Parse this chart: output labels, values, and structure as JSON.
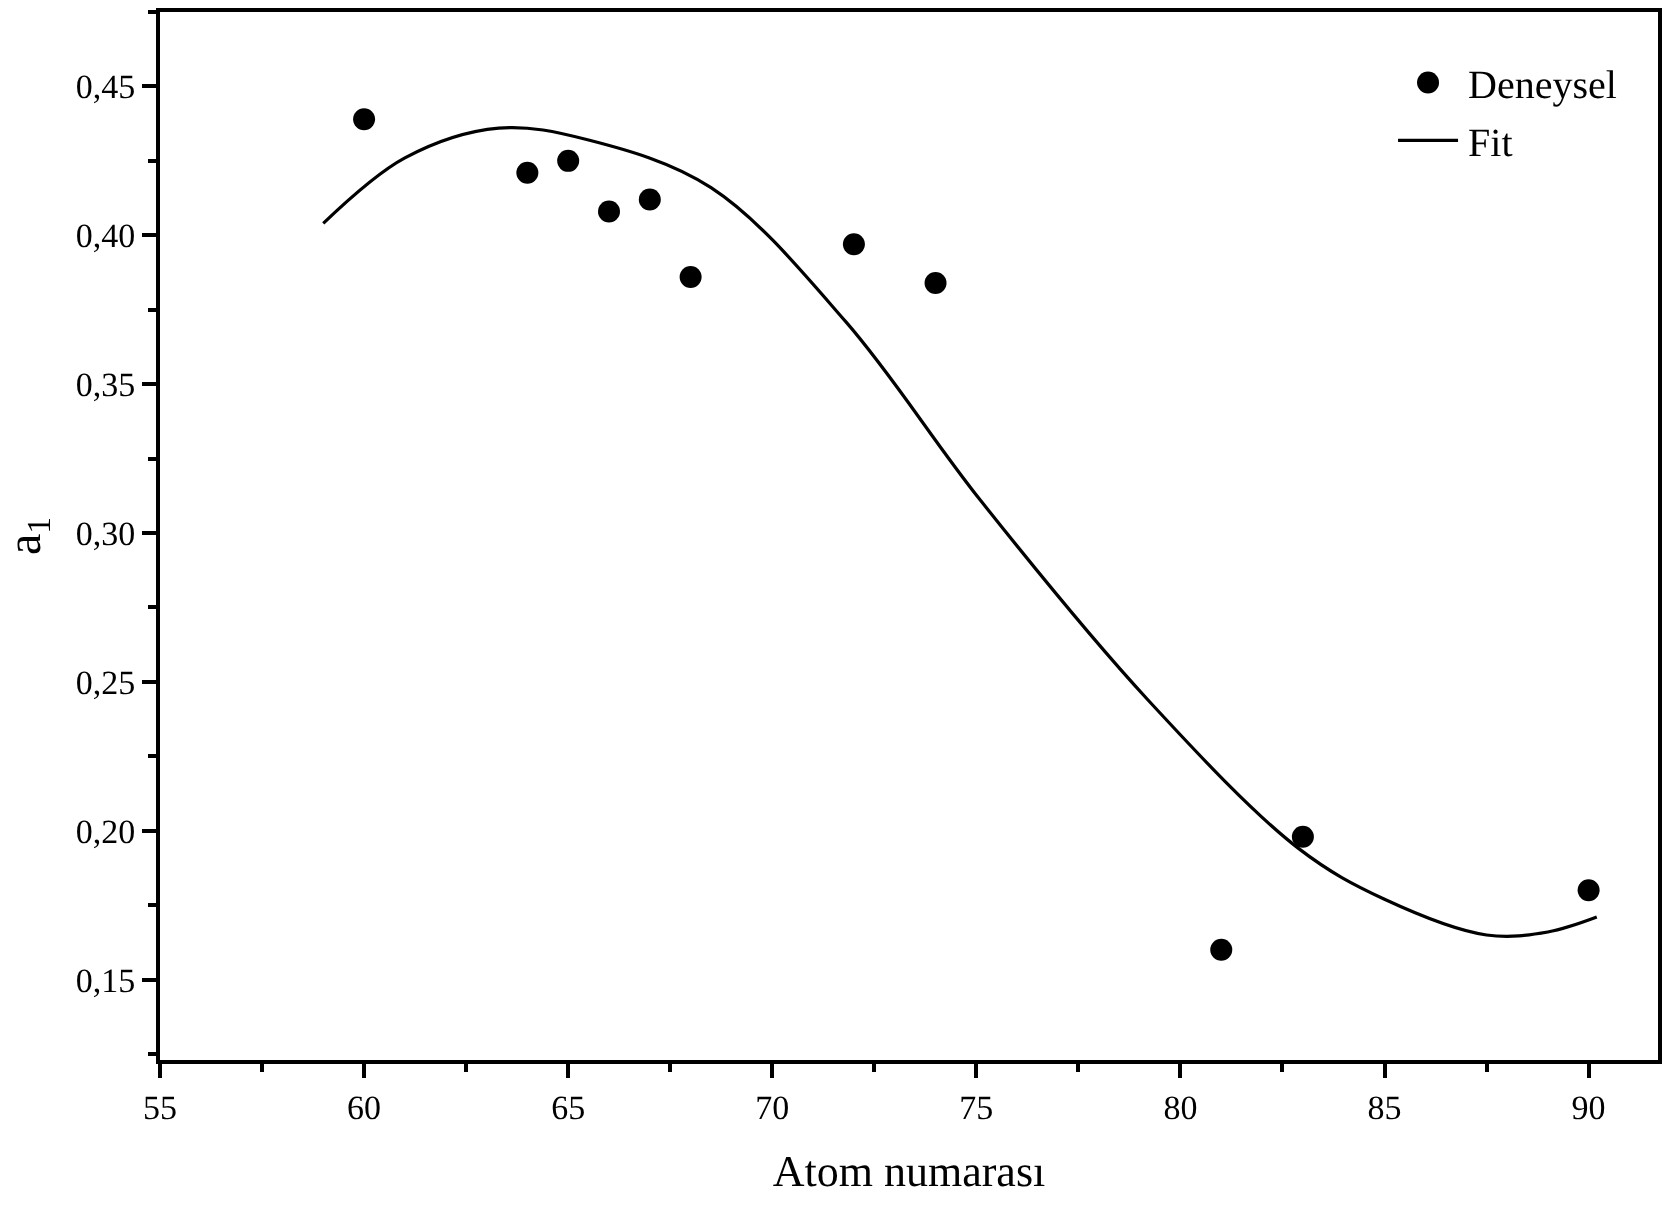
{
  "chart_data": {
    "type": "scatter",
    "xlabel": "Atom numarası",
    "ylabel": "a$_{1}$",
    "xlim": [
      55,
      91.7
    ],
    "ylim": [
      0.123,
      0.475
    ],
    "xticks": [
      55,
      60,
      65,
      70,
      75,
      80,
      85,
      90
    ],
    "yticks": [
      {
        "value": 0.15,
        "label": "0,15"
      },
      {
        "value": 0.2,
        "label": "0,20"
      },
      {
        "value": 0.25,
        "label": "0,25"
      },
      {
        "value": 0.3,
        "label": "0,30"
      },
      {
        "value": 0.35,
        "label": "0,35"
      },
      {
        "value": 0.4,
        "label": "0,40"
      },
      {
        "value": 0.45,
        "label": "0,45"
      }
    ],
    "legend": "top right",
    "series": [
      {
        "name": "Deneysel",
        "marker": "circle",
        "color": "#000000",
        "x": [
          60,
          64,
          65,
          66,
          67,
          68,
          72,
          74,
          81,
          83,
          90
        ],
        "values": [
          0.439,
          0.421,
          0.425,
          0.408,
          0.412,
          0.386,
          0.397,
          0.384,
          0.16,
          0.198,
          0.18
        ]
      },
      {
        "name": "Fit",
        "type": "line",
        "color": "#000000",
        "line_style": "solid",
        "x": [
          59,
          61,
          63.3,
          65.5,
          68.5,
          71.8,
          75.1,
          79.2,
          82.9,
          85,
          87.5,
          89,
          90.2
        ],
        "values": [
          0.404,
          0.426,
          0.436,
          0.432,
          0.416,
          0.371,
          0.311,
          0.244,
          0.194,
          0.177,
          0.165,
          0.166,
          0.171
        ]
      }
    ]
  }
}
